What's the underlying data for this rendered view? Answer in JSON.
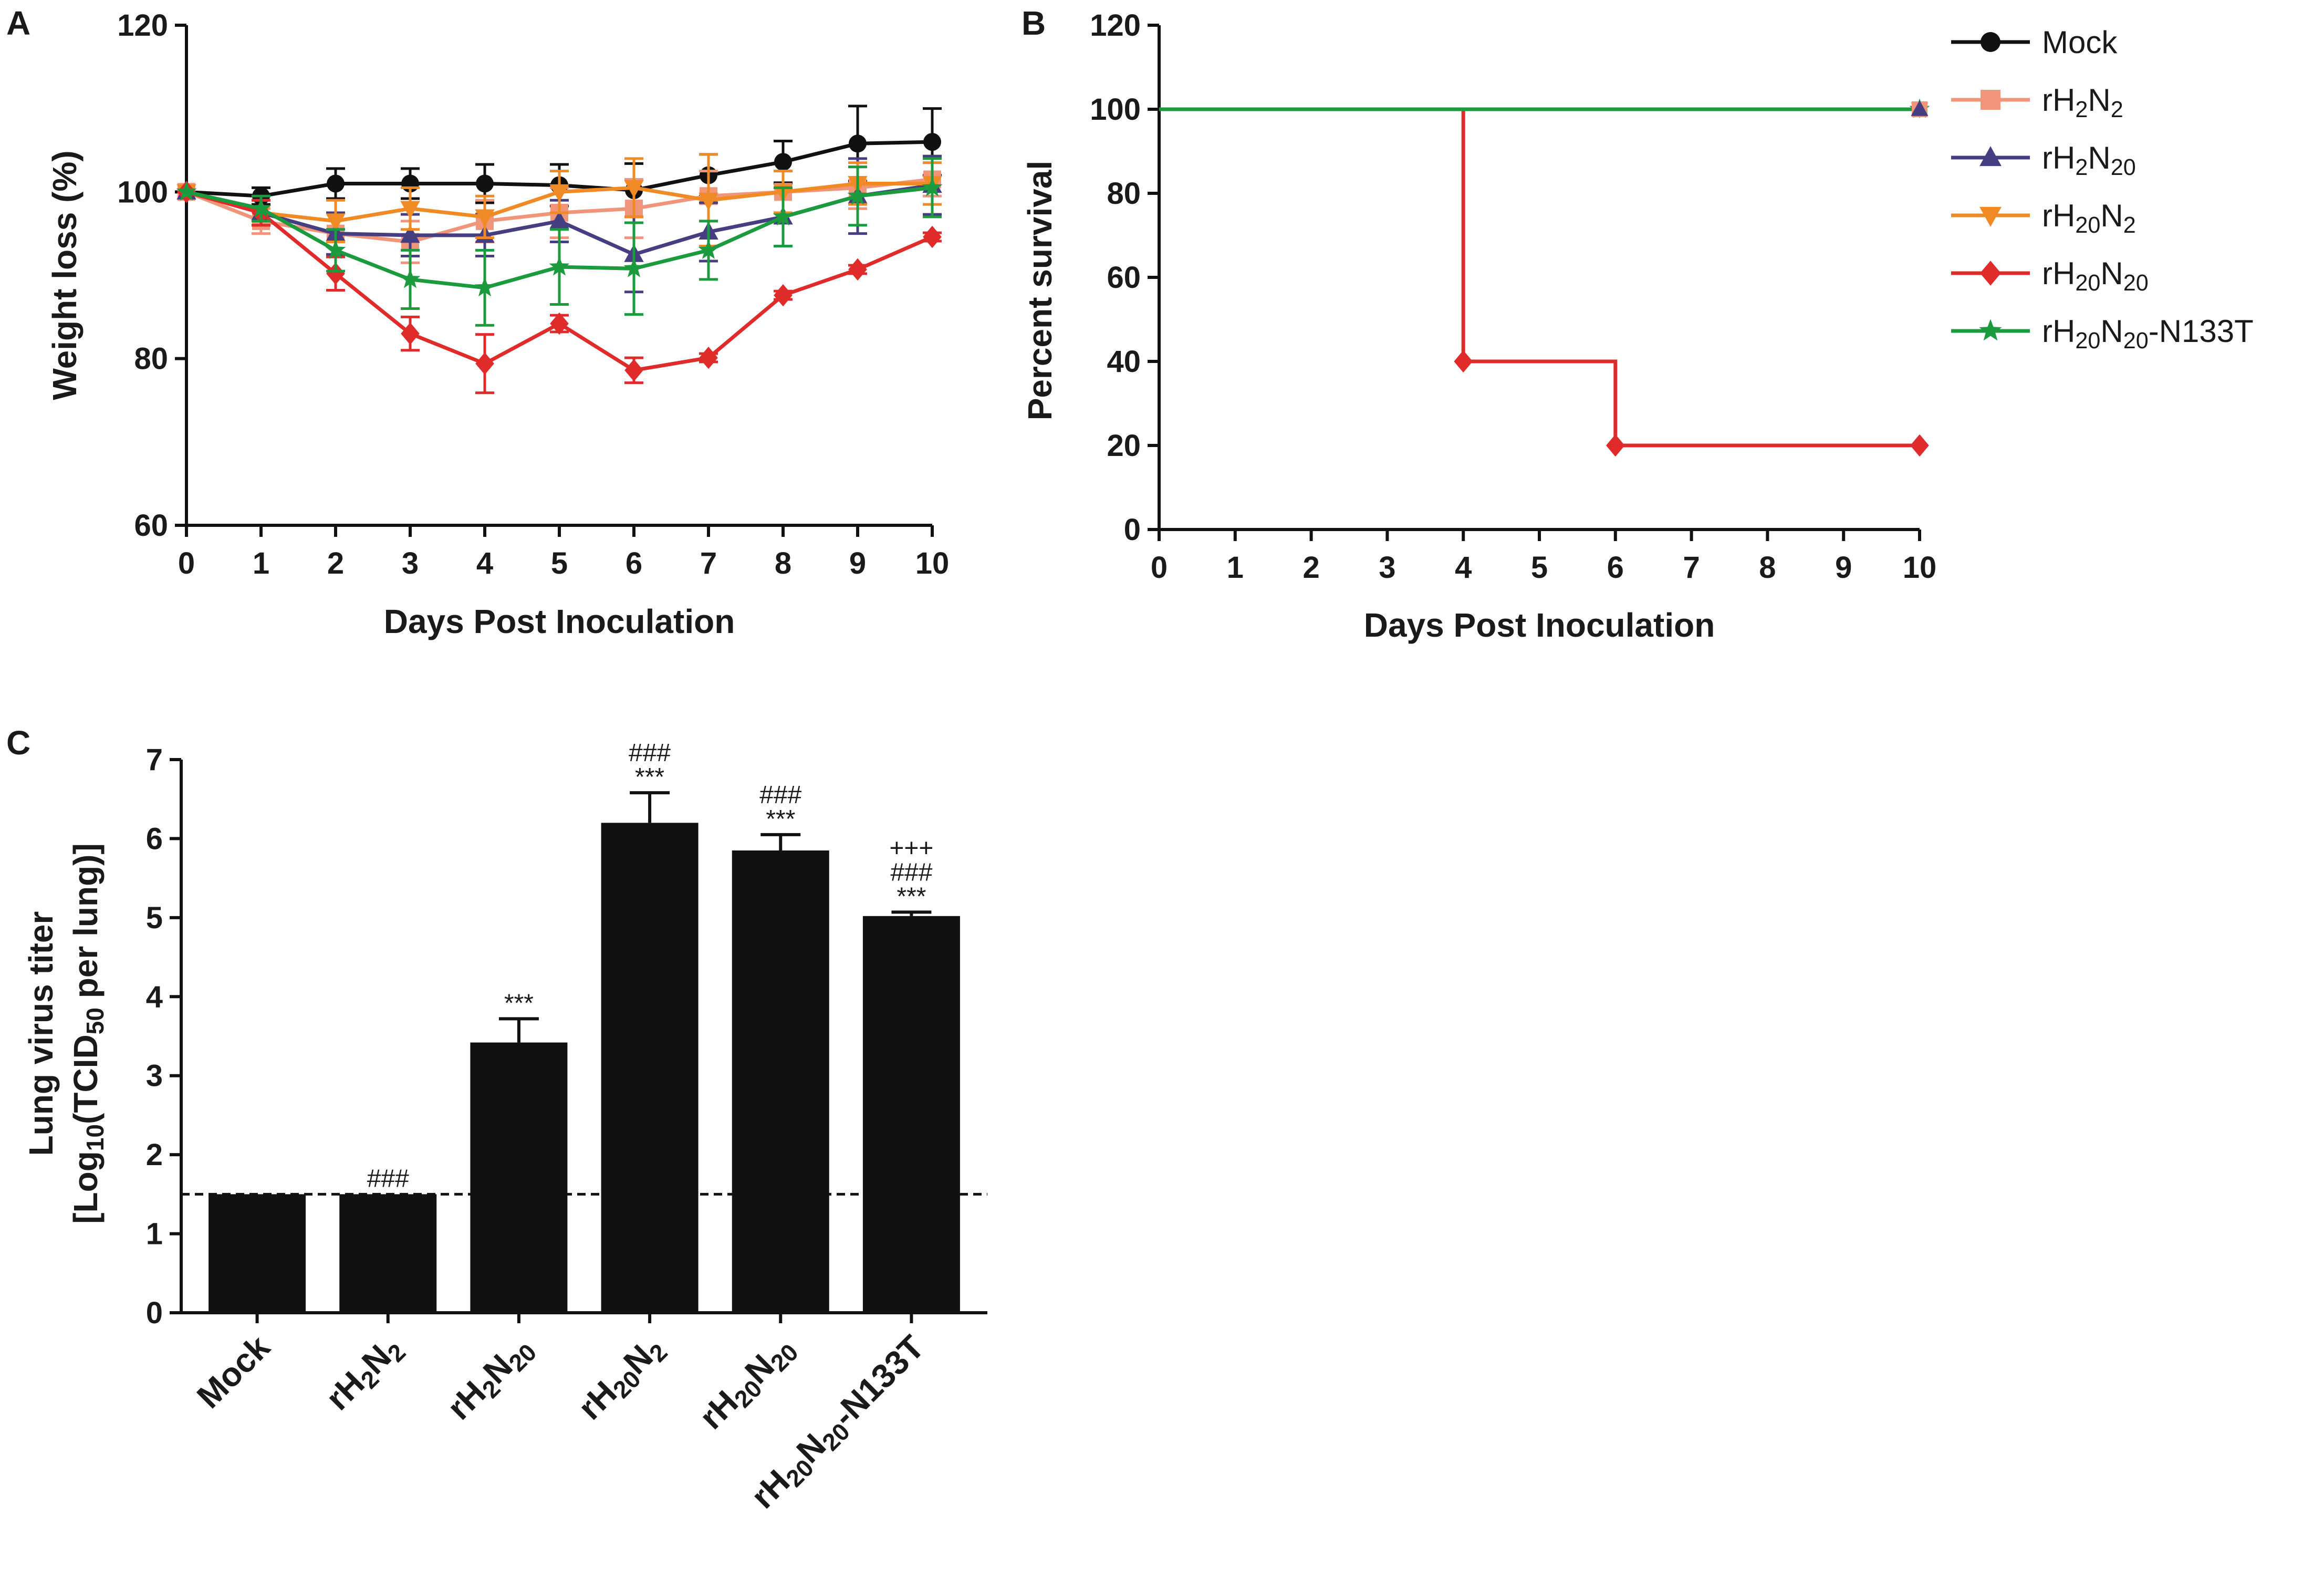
{
  "figure": {
    "panels": [
      "A",
      "B",
      "C"
    ]
  },
  "legend": {
    "entries": [
      {
        "name": "Mock",
        "base": "rH",
        "label_parts": [
          [
            "Mock",
            ""
          ]
        ],
        "marker": "circle",
        "color": "#111111"
      },
      {
        "name": "rH2N2",
        "label_parts": [
          [
            "rH",
            "2"
          ],
          [
            "N",
            "2"
          ]
        ],
        "marker": "square",
        "color": "#f0957a"
      },
      {
        "name": "rH2N20",
        "label_parts": [
          [
            "rH",
            "2"
          ],
          [
            "N",
            "20"
          ]
        ],
        "marker": "triangle",
        "color": "#453e80"
      },
      {
        "name": "rH20N2",
        "label_parts": [
          [
            "rH",
            "20"
          ],
          [
            "N",
            "2"
          ]
        ],
        "marker": "triangle-down",
        "color": "#f08a25"
      },
      {
        "name": "rH20N20",
        "label_parts": [
          [
            "rH",
            "20"
          ],
          [
            "N",
            "20"
          ]
        ],
        "marker": "diamond",
        "color": "#e02b2b"
      },
      {
        "name": "rH20N20-N133T",
        "label_parts": [
          [
            "rH",
            "20"
          ],
          [
            "N",
            "20"
          ],
          [
            "-N133T",
            ""
          ]
        ],
        "marker": "star",
        "color": "#1c9a3e"
      }
    ]
  },
  "chart_data": [
    {
      "panel": "A",
      "type": "line",
      "title": "",
      "xlabel": "Days Post Inoculation",
      "ylabel": "Weight loss (%)",
      "xlim": [
        0,
        10
      ],
      "ylim": [
        60,
        120
      ],
      "xticks": [
        0,
        1,
        2,
        3,
        4,
        5,
        6,
        7,
        8,
        9,
        10
      ],
      "yticks": [
        60,
        80,
        100,
        120
      ],
      "x": [
        0,
        1,
        2,
        3,
        4,
        5,
        6,
        7,
        8,
        9,
        10
      ],
      "series": [
        {
          "name": "Mock",
          "values": [
            100,
            99.5,
            101,
            101,
            101,
            100.8,
            100.2,
            102,
            103.6,
            105.8,
            106
          ],
          "error": [
            0,
            1,
            1.8,
            1.8,
            2.3,
            2.5,
            3.2,
            2.5,
            2.5,
            4.5,
            4
          ]
        },
        {
          "name": "rH2N2",
          "values": [
            100,
            96.5,
            95,
            94,
            96.5,
            97.5,
            98,
            99.5,
            100,
            100.5,
            101.5
          ],
          "error": [
            0,
            1.5,
            2.5,
            2.5,
            2.5,
            3,
            3.5,
            3,
            2.5,
            2.5,
            2
          ]
        },
        {
          "name": "rH2N20",
          "values": [
            100,
            97.5,
            95,
            94.8,
            94.8,
            96.5,
            92.5,
            95.2,
            97,
            99.5,
            100.8
          ],
          "error": [
            0,
            1.5,
            2.5,
            2.5,
            2.5,
            2.5,
            4.5,
            3.5,
            3.5,
            4.5,
            3.5
          ]
        },
        {
          "name": "rH20N2",
          "values": [
            100,
            97.5,
            96.5,
            98,
            97,
            100,
            100.5,
            99,
            100,
            101,
            101
          ],
          "error": [
            0,
            1.5,
            2.5,
            2.5,
            2.5,
            2.5,
            3.5,
            5.5,
            2.5,
            2.5,
            2.5
          ]
        },
        {
          "name": "rH20N20",
          "values": [
            100,
            97.5,
            90.2,
            83,
            79.4,
            84.2,
            78.6,
            80.1,
            87.6,
            90.7,
            94.6
          ],
          "error": [
            0,
            1.5,
            2,
            2,
            3.5,
            1,
            1.5,
            0.5,
            0.5,
            0.5,
            0.5
          ]
        },
        {
          "name": "rH20N20-N133T",
          "values": [
            100,
            98,
            93,
            89.5,
            88.5,
            91,
            90.8,
            93,
            97,
            99.5,
            100.5
          ],
          "error": [
            0,
            1.5,
            2.5,
            3.5,
            4.5,
            4.5,
            5.5,
            3.5,
            3.5,
            3.5,
            3.5
          ]
        }
      ]
    },
    {
      "panel": "B",
      "type": "line",
      "step": true,
      "title": "",
      "xlabel": "Days Post Inoculation",
      "ylabel": "Percent survival",
      "xlim": [
        0,
        10
      ],
      "ylim": [
        0,
        120
      ],
      "xticks": [
        0,
        1,
        2,
        3,
        4,
        5,
        6,
        7,
        8,
        9,
        10
      ],
      "yticks": [
        0,
        20,
        40,
        60,
        80,
        100,
        120
      ],
      "series": [
        {
          "name": "rH20N20-N133T",
          "x": [
            0,
            10
          ],
          "values": [
            100,
            100
          ]
        },
        {
          "name": "rH20N20",
          "x": [
            0,
            4,
            6,
            10
          ],
          "values": [
            100,
            40,
            20,
            20
          ]
        }
      ]
    },
    {
      "panel": "C",
      "type": "bar",
      "title": "",
      "xlabel": "",
      "ylabel": "Lung virus titer [Log10(TCID50 per lung)]",
      "ylabel_line1": "Lung virus titer",
      "ylabel_line2_parts": [
        [
          "[Log",
          "10"
        ],
        [
          "(TCID",
          "50"
        ],
        [
          " per lung)]",
          ""
        ]
      ],
      "ylim": [
        0,
        7
      ],
      "yticks": [
        0,
        1,
        2,
        3,
        4,
        5,
        6,
        7
      ],
      "detection_limit": 1.5,
      "categories": [
        "Mock",
        "rH2N2",
        "rH2N20",
        "rH20N2",
        "rH20N20",
        "rH20N20-N133T"
      ],
      "values": [
        1.5,
        1.5,
        3.42,
        6.2,
        5.85,
        5.02
      ],
      "error": [
        0,
        0,
        0.3,
        0.38,
        0.2,
        0.05
      ],
      "annotations": [
        [],
        [
          "###"
        ],
        [
          "***"
        ],
        [
          "###",
          "***"
        ],
        [
          "###",
          "***"
        ],
        [
          "+++",
          "###",
          "***"
        ]
      ]
    }
  ]
}
